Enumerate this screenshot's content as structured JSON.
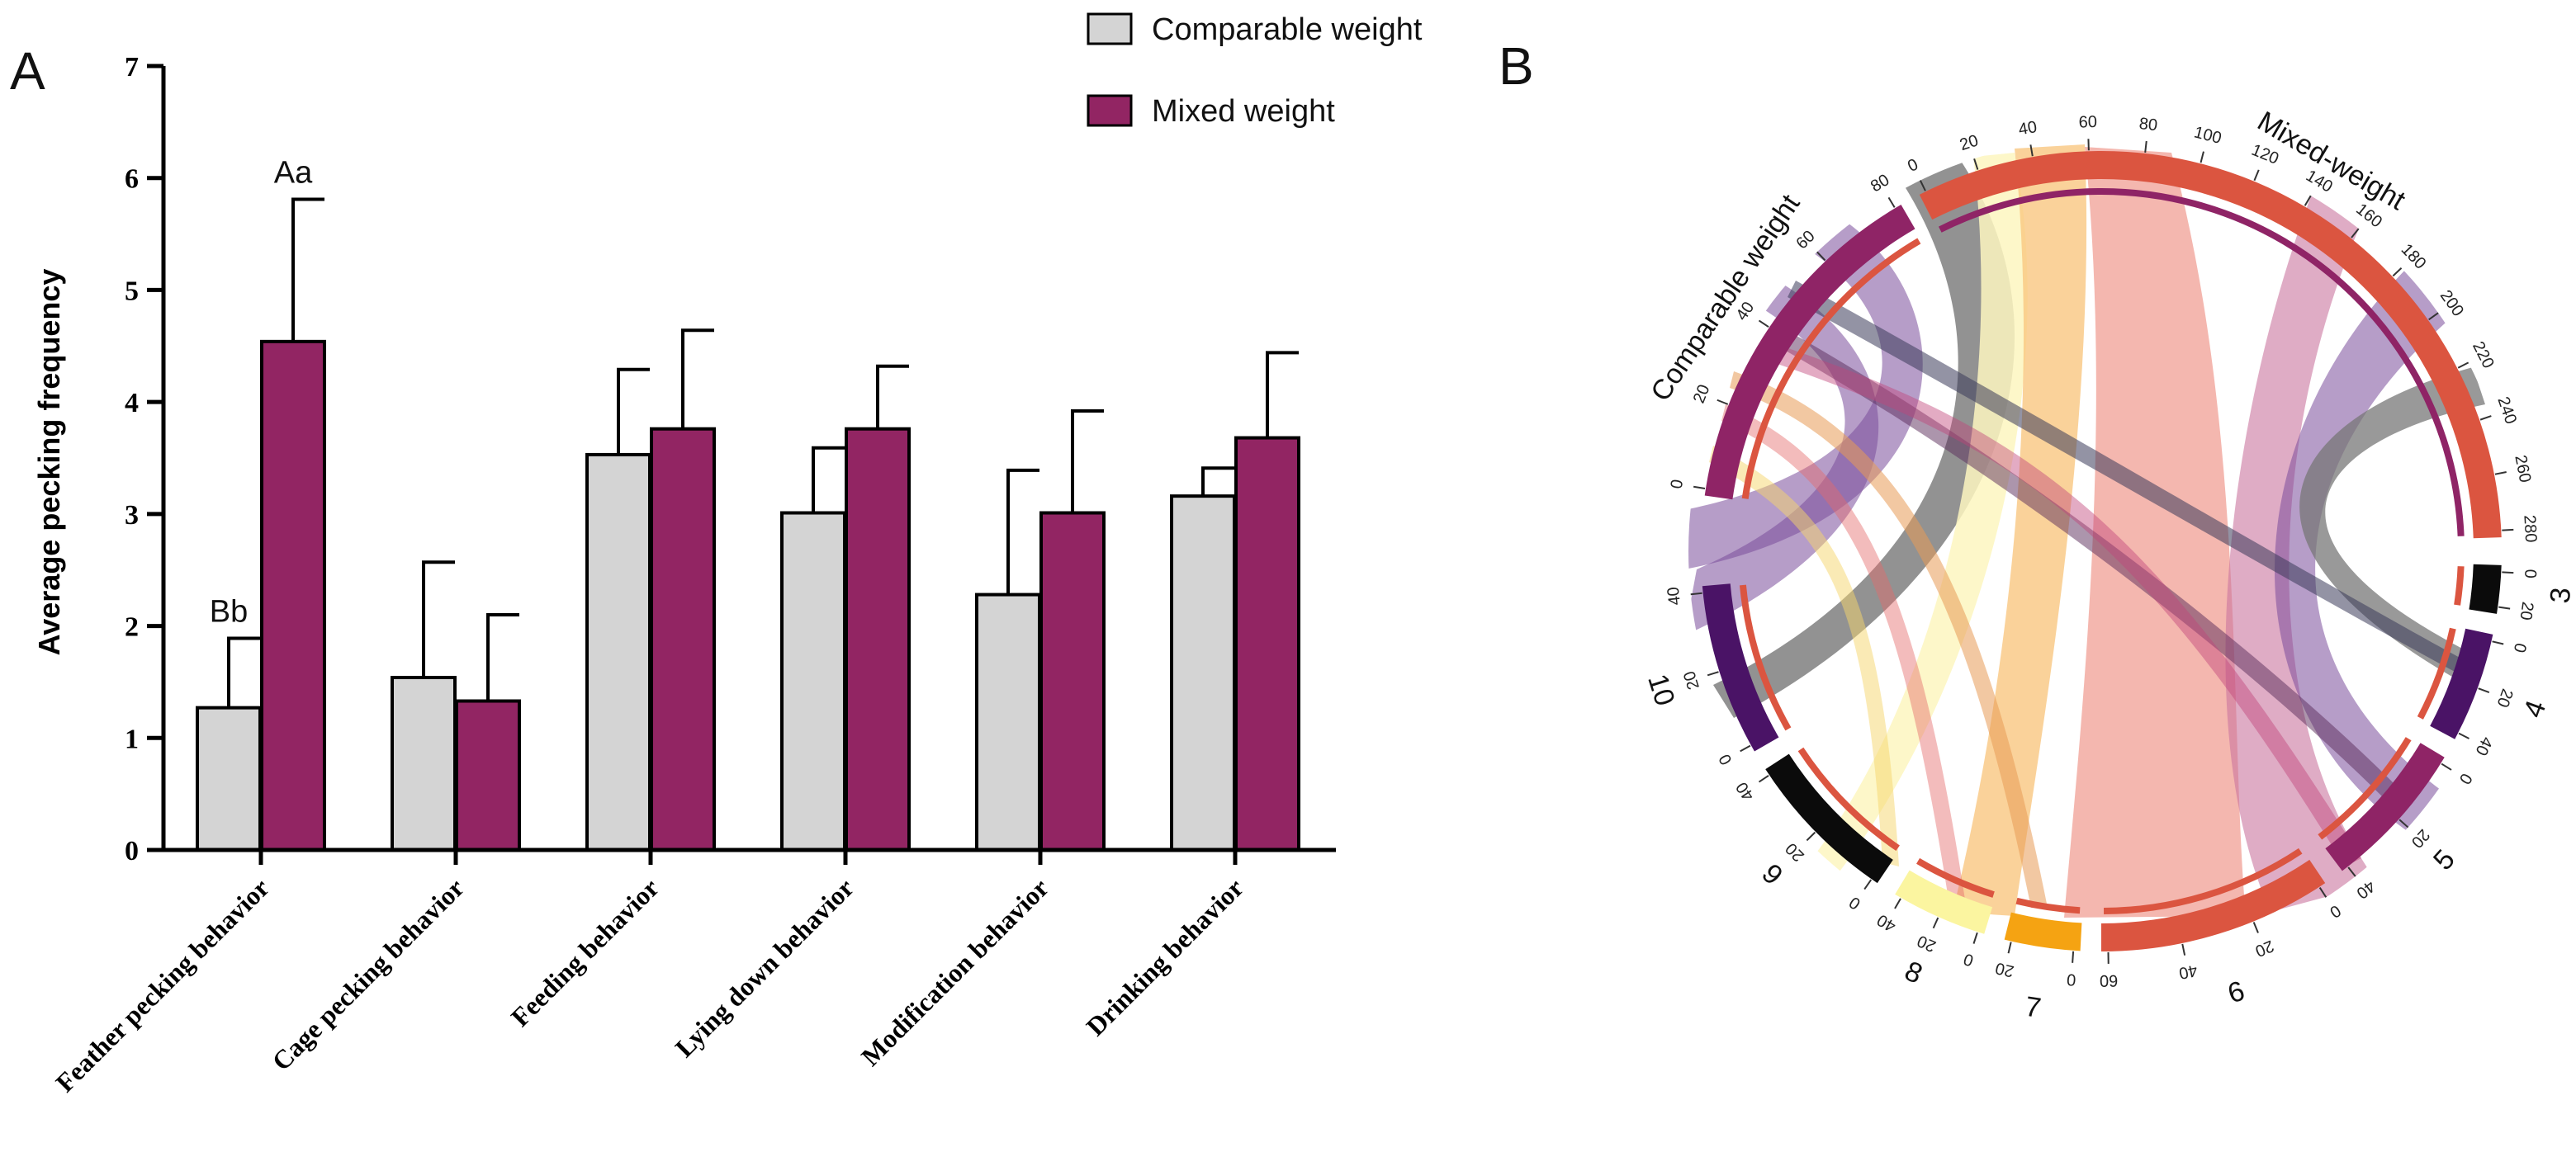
{
  "chart_data": [
    {
      "panel": "A",
      "type": "bar",
      "ylabel": "Average pecking frequency",
      "ylim": [
        0,
        7
      ],
      "yticks": [
        "0",
        "1",
        "2",
        "3",
        "4",
        "5",
        "6",
        "7"
      ],
      "categories": [
        "Feather pecking behavior",
        "Cage pecking behavior",
        "Feeding behavior",
        "Lying down behavior",
        "Modification behavior",
        "Drinking behavior"
      ],
      "series": [
        {
          "name": "Comparable weight",
          "color": "#d4d4d4",
          "values": [
            1.27,
            1.54,
            3.53,
            3.01,
            2.28,
            3.16
          ],
          "errors": [
            0.62,
            1.03,
            0.76,
            0.58,
            1.11,
            0.25
          ]
        },
        {
          "name": "Mixed weight",
          "color": "#922563",
          "values": [
            4.54,
            1.33,
            3.76,
            3.76,
            3.01,
            3.68
          ],
          "errors": [
            1.27,
            0.77,
            0.88,
            0.56,
            0.91,
            0.76
          ]
        }
      ],
      "annotations": [
        {
          "category": 0,
          "series": 0,
          "text": "Bb"
        },
        {
          "category": 0,
          "series": 1,
          "text": "Aa"
        }
      ],
      "legend": "top-center"
    },
    {
      "panel": "B",
      "type": "chord",
      "groups": [
        {
          "name": "Mixed-weight",
          "color": "#db5540",
          "ticks": [
            "0",
            "20",
            "40",
            "60",
            "80",
            "100",
            "120",
            "140",
            "160",
            "180",
            "200",
            "220",
            "240",
            "260",
            "280"
          ]
        },
        {
          "name": "Comparable weight",
          "color": "#8f2466",
          "ticks": [
            "0",
            "20",
            "40",
            "60",
            "80"
          ]
        },
        {
          "name": "10",
          "color": "#4a1366",
          "ticks": [
            "0",
            "20",
            "40"
          ]
        },
        {
          "name": "9",
          "color": "#0b0b0b",
          "ticks": [
            "0",
            "20",
            "40"
          ]
        },
        {
          "name": "8",
          "color": "#fbf5a0",
          "ticks": [
            "0",
            "20",
            "40"
          ]
        },
        {
          "name": "7",
          "color": "#f5a312",
          "ticks": [
            "0",
            "20"
          ]
        },
        {
          "name": "6",
          "color": "#db5540",
          "ticks": [
            "0",
            "20",
            "40",
            "60"
          ]
        },
        {
          "name": "5",
          "color": "#8f2466",
          "ticks": [
            "0",
            "20",
            "40"
          ]
        },
        {
          "name": "4",
          "color": "#4a1366",
          "ticks": [
            "0",
            "20",
            "40"
          ]
        },
        {
          "name": "3",
          "color": "#0b0b0b",
          "ticks": [
            "0",
            "20"
          ]
        }
      ]
    }
  ],
  "panels": {
    "a_letter": "A",
    "b_letter": "B"
  },
  "colors": {
    "comparable": "#d4d4d4",
    "mixed": "#922563",
    "axis": "#000000"
  }
}
